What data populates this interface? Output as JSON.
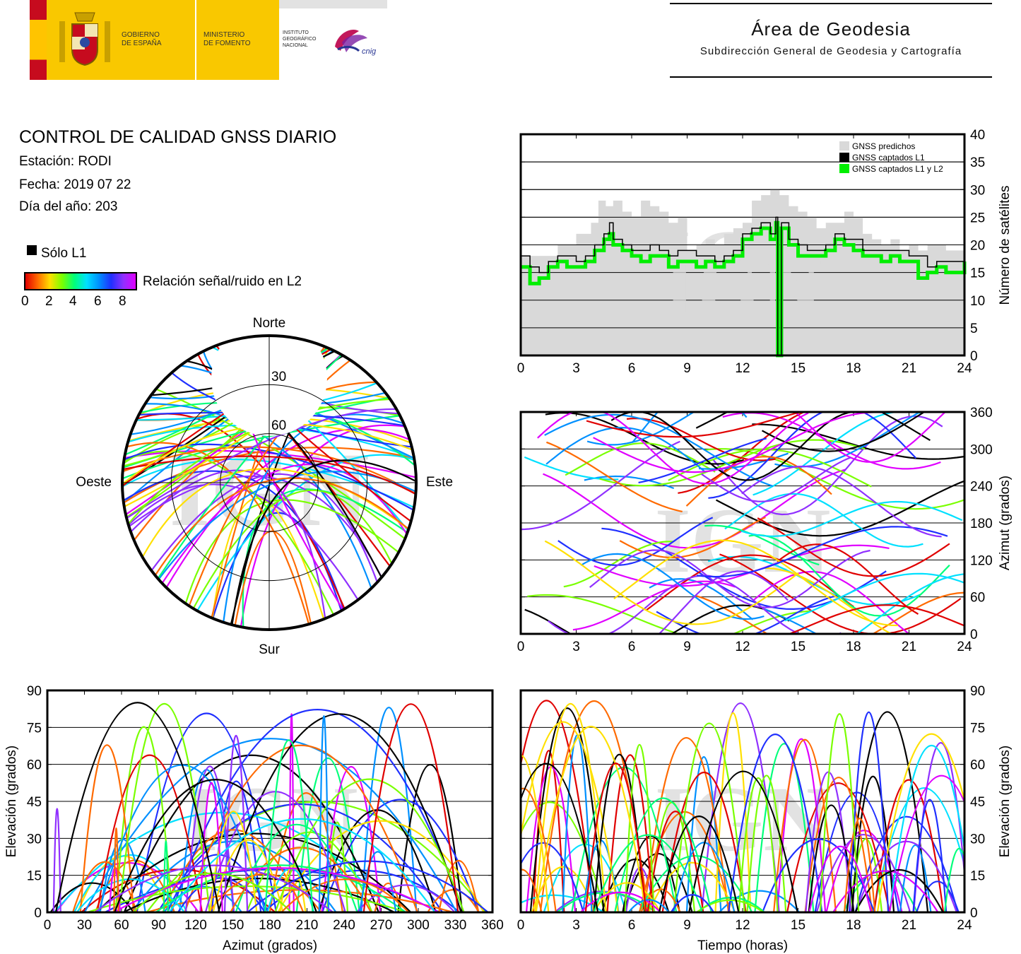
{
  "header": {
    "gobierno_line1": "GOBIERNO",
    "gobierno_line2": "DE ESPAÑA",
    "ministerio_line1": "MINISTERIO",
    "ministerio_line2": "DE FOMENTO",
    "ign_line1": "INSTITUTO",
    "ign_line2": "GEOGRÁFICO",
    "ign_line3": "NACIONAL",
    "cnig": "cnig",
    "area_title": "Área de Geodesia",
    "area_subtitle": "Subdirección General de Geodesia y Cartografía"
  },
  "report": {
    "title": "CONTROL DE CALIDAD GNSS DIARIO",
    "station": "Estación: RODI",
    "date": "Fecha: 2019 07 22",
    "doy": "Día del año: 203",
    "legend_l1": "Sólo L1",
    "legend_snr": "Relación señal/ruido en L2",
    "snr_ticks": [
      "0",
      "2",
      "4",
      "6",
      "8"
    ]
  },
  "colors": {
    "snr_scale": [
      "#e00000",
      "#ff6a00",
      "#ffe000",
      "#7aff00",
      "#00ff7a",
      "#00e0ff",
      "#0090ff",
      "#2030ff",
      "#9030ff",
      "#e000ff"
    ],
    "l1_only": "#000000",
    "predicted": "#d9d9d9",
    "captured_l1": "#000000",
    "captured_l1l2": "#00ee00"
  },
  "chart_data": [
    {
      "type": "area",
      "id": "satellites",
      "ylabel": "Número de satélites",
      "xlim": [
        0,
        24
      ],
      "ylim": [
        0,
        40
      ],
      "xticks": [
        "0",
        "3",
        "6",
        "9",
        "12",
        "15",
        "18",
        "21",
        "24"
      ],
      "yticks": [
        "0",
        "5",
        "10",
        "15",
        "20",
        "25",
        "30",
        "35",
        "40"
      ],
      "grid": true,
      "legend_position": "top-right",
      "watermark": "IGN",
      "series": [
        {
          "name": "GNSS predichos",
          "x": [
            0,
            1,
            2,
            3,
            3.8,
            4.2,
            4.6,
            5,
            5.5,
            6,
            6.5,
            7,
            7.5,
            8,
            8.5,
            9,
            9.5,
            10,
            10.5,
            11,
            11.5,
            12,
            12.5,
            13,
            13.5,
            14,
            14.5,
            15,
            15.5,
            16,
            16.5,
            17,
            17.5,
            18,
            18.5,
            19,
            19.5,
            20,
            20.5,
            21,
            21.5,
            22,
            22.5,
            23,
            23.5,
            24
          ],
          "y": [
            18,
            18,
            20,
            22,
            24,
            28,
            27,
            28,
            26,
            25,
            28,
            27,
            26,
            24,
            25,
            19,
            20,
            21,
            20,
            22,
            23,
            24,
            28,
            29,
            30,
            29,
            27,
            26,
            25,
            23,
            24,
            24,
            26,
            25,
            22,
            21,
            20,
            21,
            19,
            20,
            19,
            20,
            20,
            19,
            19,
            18
          ]
        },
        {
          "name": "GNSS captados L1",
          "x": [
            0,
            0.5,
            1,
            1.5,
            2,
            2.5,
            3,
            3.5,
            4,
            4.5,
            4.8,
            5,
            5.5,
            6,
            6.5,
            7,
            7.5,
            8,
            8.5,
            9,
            9.5,
            10,
            10.5,
            11,
            11.5,
            12,
            12.5,
            13,
            13.5,
            13.8,
            13.9,
            14.0,
            14.1,
            14.5,
            15,
            15.5,
            16,
            16.5,
            17,
            17.5,
            18,
            18.5,
            19,
            19.5,
            20,
            20.5,
            21,
            21.5,
            22,
            22.5,
            23,
            23.5,
            24
          ],
          "y": [
            18,
            16,
            15,
            17,
            18,
            18,
            17,
            18,
            20,
            22,
            24,
            21,
            20,
            19,
            19,
            20,
            19,
            18,
            19,
            19,
            18,
            18,
            17,
            18,
            19,
            22,
            23,
            24,
            22,
            25,
            0,
            0,
            24,
            21,
            20,
            19,
            19,
            20,
            22,
            21,
            21,
            19,
            19,
            19,
            19,
            19,
            18,
            18,
            16,
            17,
            17,
            17,
            19
          ]
        },
        {
          "name": "GNSS captados L1 y L2",
          "x": [
            0,
            0.5,
            1,
            1.5,
            2,
            2.5,
            3,
            3.5,
            4,
            4.5,
            4.8,
            5,
            5.5,
            6,
            6.5,
            7,
            7.5,
            8,
            8.5,
            9,
            9.5,
            10,
            10.5,
            11,
            11.5,
            12,
            12.5,
            13,
            13.5,
            13.8,
            13.9,
            14.0,
            14.1,
            14.5,
            15,
            15.5,
            16,
            16.5,
            17,
            17.5,
            18,
            18.5,
            19,
            19.5,
            20,
            20.5,
            21,
            21.5,
            22,
            22.5,
            23,
            23.5,
            24
          ],
          "y": [
            16,
            13,
            14,
            16,
            17,
            16,
            16,
            17,
            19,
            21,
            22,
            20,
            19,
            18,
            17,
            18,
            18,
            16,
            17,
            17,
            16,
            17,
            16,
            17,
            18,
            21,
            22,
            23,
            21,
            24,
            0,
            0,
            23,
            20,
            18,
            18,
            18,
            19,
            21,
            20,
            19,
            18,
            18,
            17,
            18,
            17,
            17,
            14,
            15,
            16,
            15,
            15,
            17
          ]
        }
      ]
    },
    {
      "type": "scatter",
      "id": "skyplot",
      "labels": {
        "north": "Norte",
        "south": "Sur",
        "west": "Oeste",
        "east": "Este"
      },
      "rings": [
        "30",
        "60"
      ],
      "watermark": "IGN"
    },
    {
      "type": "scatter",
      "id": "azimuth-time",
      "ylabel": "Azimut (grados)",
      "xlim": [
        0,
        24
      ],
      "ylim": [
        0,
        360
      ],
      "xticks": [
        "0",
        "3",
        "6",
        "9",
        "12",
        "15",
        "18",
        "21",
        "24"
      ],
      "yticks": [
        "0",
        "60",
        "120",
        "180",
        "240",
        "300",
        "360"
      ],
      "grid": true,
      "watermark": "IGN"
    },
    {
      "type": "scatter",
      "id": "elevation-azimuth",
      "xlabel": "Azimut (grados)",
      "ylabel": "Elevación (grados)",
      "xlim": [
        0,
        360
      ],
      "ylim": [
        0,
        90
      ],
      "xticks": [
        "0",
        "30",
        "60",
        "90",
        "120",
        "150",
        "180",
        "210",
        "240",
        "270",
        "300",
        "330",
        "360"
      ],
      "yticks": [
        "0",
        "15",
        "30",
        "45",
        "60",
        "75",
        "90"
      ],
      "grid": true,
      "watermark": "IGN"
    },
    {
      "type": "line",
      "id": "elevation-time",
      "xlabel": "Tiempo (horas)",
      "ylabel": "Elevación (grados)",
      "xlim": [
        0,
        24
      ],
      "ylim": [
        0,
        90
      ],
      "xticks": [
        "0",
        "3",
        "6",
        "9",
        "12",
        "15",
        "18",
        "21",
        "24"
      ],
      "yticks": [
        "0",
        "15",
        "30",
        "45",
        "60",
        "75",
        "90"
      ],
      "grid": true,
      "watermark": "IGN"
    }
  ]
}
